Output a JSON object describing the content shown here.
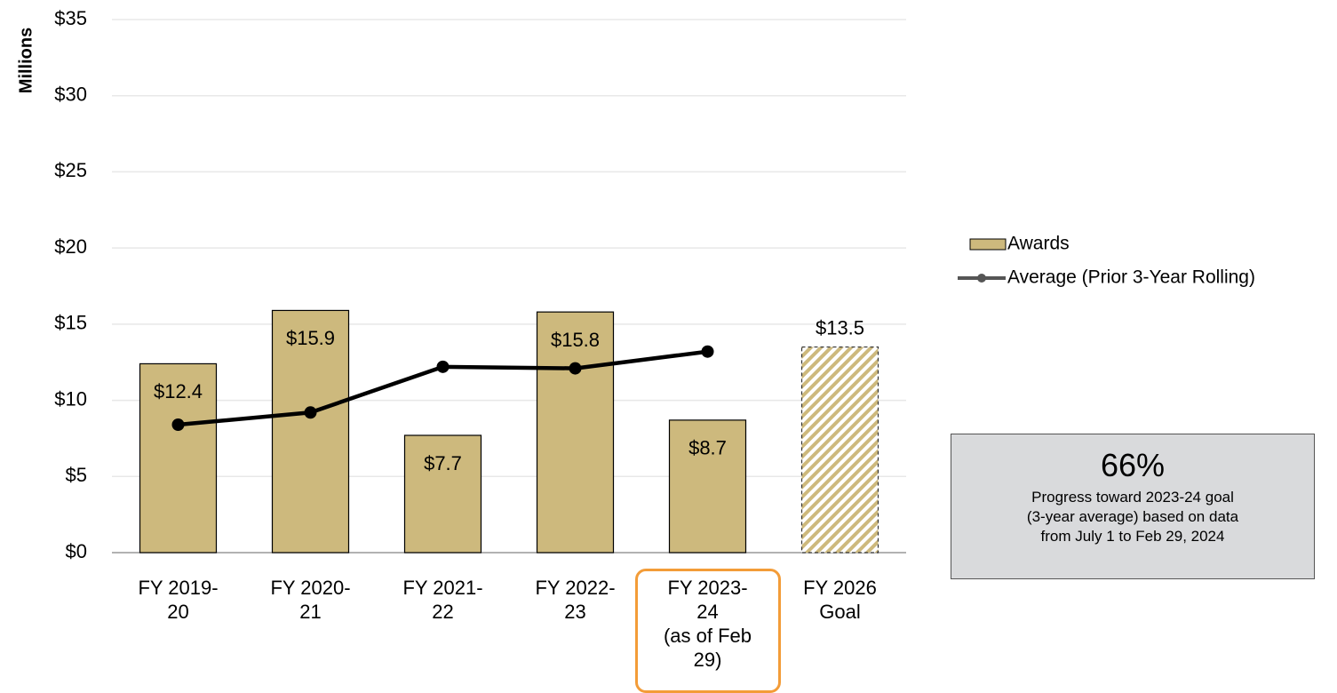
{
  "chart_data": {
    "type": "bar",
    "y_axis_label": "Millions",
    "categories": [
      "FY 2019-\n20",
      "FY 2020-\n21",
      "FY 2021-\n22",
      "FY 2022-\n23",
      "FY 2023-\n24\n(as of Feb\n29)",
      "FY 2026\nGoal"
    ],
    "series": [
      {
        "name": "Awards",
        "color": "#cdb97d",
        "type": "bar",
        "values": [
          12.4,
          15.9,
          7.7,
          15.8,
          8.7,
          13.5
        ],
        "value_labels": [
          "$12.4",
          "$15.9",
          "$7.7",
          "$15.8",
          "$8.7",
          "$13.5"
        ],
        "hatched": [
          false,
          false,
          false,
          false,
          false,
          true
        ]
      },
      {
        "name": "Average (Prior 3-Year Rolling)",
        "color": "#000000",
        "type": "line",
        "values": [
          8.4,
          9.2,
          12.2,
          12.1,
          13.2,
          null
        ]
      }
    ],
    "ylim": [
      0,
      35
    ],
    "yticks": [
      {
        "value": 0,
        "label": "$0"
      },
      {
        "value": 5,
        "label": "$5"
      },
      {
        "value": 10,
        "label": "$10"
      },
      {
        "value": 15,
        "label": "$15"
      },
      {
        "value": 20,
        "label": "$20"
      },
      {
        "value": 25,
        "label": "$25"
      },
      {
        "value": 30,
        "label": "$30"
      },
      {
        "value": 35,
        "label": "$35"
      }
    ],
    "grid": true,
    "legend": "right",
    "highlight_category": 4,
    "highlight_color": "#f39c38",
    "annotation": {
      "value": 66,
      "value_label": "66%",
      "text": "Progress toward 2023-24 goal\n(3-year average) based on data\nfrom July 1 to Feb 29, 2024"
    }
  }
}
